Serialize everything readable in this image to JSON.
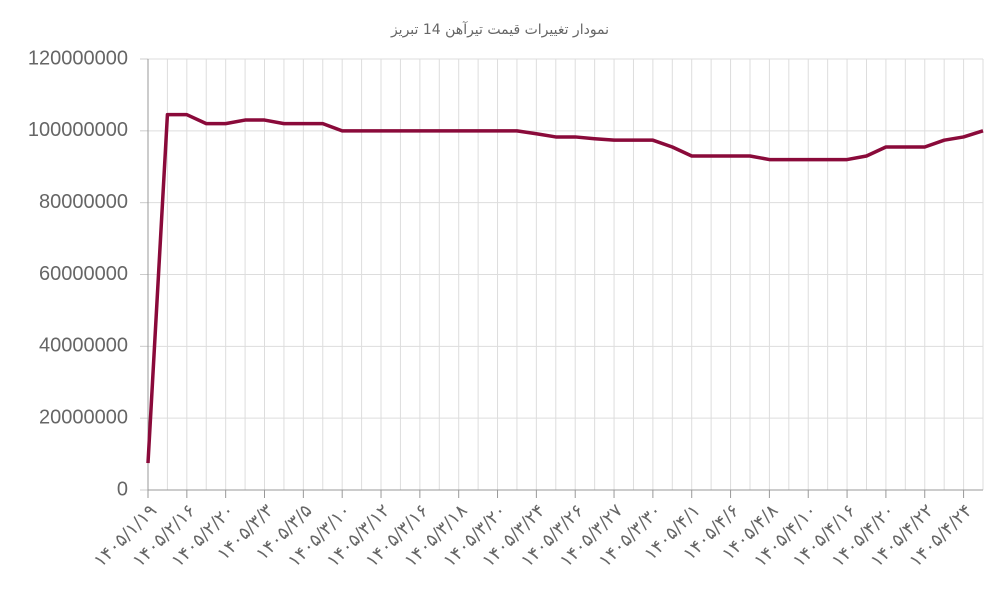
{
  "chart_data": {
    "type": "line",
    "title": "نمودار تغییرات قیمت تیرآهن 14 تبریز",
    "categories": [
      "۱۴۰۵/۱/۱۹",
      null,
      "۱۴۰۵/۲/۱۶",
      null,
      "۱۴۰۵/۲/۲۰",
      null,
      "۱۴۰۵/۳/۳",
      null,
      "۱۴۰۵/۳/۵",
      null,
      "۱۴۰۵/۳/۱۰",
      null,
      "۱۴۰۵/۳/۱۲",
      null,
      "۱۴۰۵/۳/۱۶",
      null,
      "۱۴۰۵/۳/۱۸",
      null,
      "۱۴۰۵/۳/۲۰",
      null,
      "۱۴۰۵/۳/۲۴",
      null,
      "۱۴۰۵/۳/۲۶",
      null,
      "۱۴۰۵/۳/۲۷",
      null,
      "۱۴۰۵/۳/۳۰",
      null,
      "۱۴۰۵/۴/۱",
      null,
      "۱۴۰۵/۴/۶",
      null,
      "۱۴۰۵/۴/۸",
      null,
      "۱۴۰۵/۴/۱۰",
      null,
      "۱۴۰۵/۴/۱۶",
      null,
      "۱۴۰۵/۴/۲۰",
      null,
      "۱۴۰۵/۴/۲۲",
      null,
      "۱۴۰۵/۴/۲۴",
      null
    ],
    "values": [
      7500000,
      104500000,
      104500000,
      102000000,
      102000000,
      103000000,
      103000000,
      102000000,
      102000000,
      102000000,
      100000000,
      100000000,
      100000000,
      100000000,
      100000000,
      100000000,
      100000000,
      100000000,
      100000000,
      100000000,
      99200000,
      98300000,
      98300000,
      97800000,
      97400000,
      97400000,
      97400000,
      95500000,
      93000000,
      93000000,
      93000000,
      93000000,
      92000000,
      92000000,
      92000000,
      92000000,
      92000000,
      93000000,
      95500000,
      95500000,
      95500000,
      97400000,
      98300000,
      100000000
    ],
    "color": "#8a0a3a",
    "ylim": [
      0,
      120000000
    ],
    "yticks": [
      0,
      20000000,
      40000000,
      60000000,
      80000000,
      100000000,
      120000000
    ],
    "grid": true
  }
}
